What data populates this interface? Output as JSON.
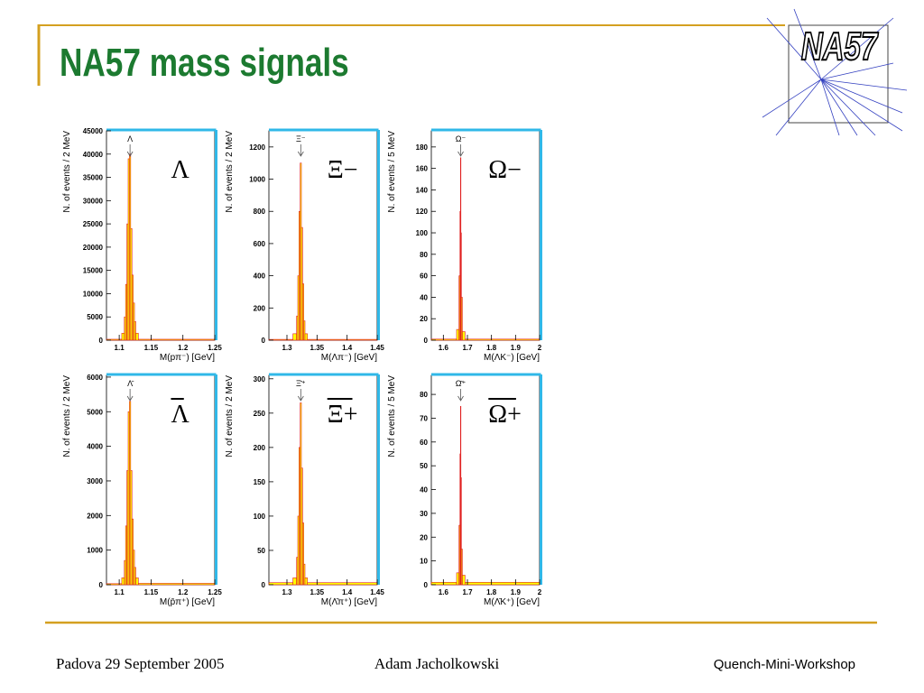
{
  "header": {
    "title": "NA57 mass signals",
    "logo": "NA57"
  },
  "footer": {
    "left": "Padova 29 September 2005",
    "center": "Adam Jacholkowski",
    "right": "Quench-Mini-Workshop"
  },
  "chart_data": [
    {
      "type": "histogram",
      "label": "Λ",
      "overline": false,
      "peak_label": "Λ",
      "xlabel": "M(pπ⁻)  [GeV]",
      "ylabel": "N. of events / 2 MeV",
      "bins": [
        1.08,
        1.104,
        1.108,
        1.11,
        1.112,
        1.114,
        1.116,
        1.118,
        1.12,
        1.122,
        1.124,
        1.126,
        1.13,
        1.25
      ],
      "counts": [
        200,
        1500,
        5000,
        12000,
        25000,
        39000,
        40000,
        24000,
        14000,
        8000,
        4000,
        1500,
        200
      ],
      "xlim": [
        1.08,
        1.25
      ],
      "ylim": [
        0,
        45000
      ],
      "xticks": [
        1.1,
        1.15,
        1.2,
        1.25
      ],
      "yticks": [
        0,
        5000,
        10000,
        15000,
        20000,
        25000,
        30000,
        35000,
        40000,
        45000
      ],
      "color": "#ffff00",
      "edge_color": "#e02020"
    },
    {
      "type": "histogram",
      "label": "Ξ−",
      "overline": false,
      "peak_label": "Ξ⁻",
      "xlabel": "M(Λπ⁻)  [GeV]",
      "ylabel": "N. of events / 2 MeV",
      "bins": [
        1.27,
        1.31,
        1.316,
        1.318,
        1.32,
        1.322,
        1.324,
        1.326,
        1.328,
        1.33,
        1.334,
        1.45
      ],
      "counts": [
        5,
        40,
        150,
        400,
        800,
        1100,
        700,
        350,
        120,
        40,
        5
      ],
      "xlim": [
        1.27,
        1.45
      ],
      "ylim": [
        0,
        1300
      ],
      "xticks": [
        1.3,
        1.35,
        1.4,
        1.45
      ],
      "yticks": [
        0,
        200,
        400,
        600,
        800,
        1000,
        1200
      ],
      "color": "#ffff00",
      "edge_color": "#e02020"
    },
    {
      "type": "histogram",
      "label": "Ω−",
      "overline": false,
      "peak_label": "Ω⁻",
      "xlabel": "M(ΛK⁻)  [GeV]",
      "ylabel": "N. of events / 5 MeV",
      "bins": [
        1.55,
        1.655,
        1.665,
        1.669,
        1.671,
        1.673,
        1.675,
        1.679,
        1.69,
        2.0
      ],
      "counts": [
        1,
        10,
        60,
        120,
        170,
        100,
        40,
        8,
        1
      ],
      "xlim": [
        1.55,
        2.0
      ],
      "ylim": [
        0,
        195
      ],
      "xticks": [
        1.6,
        1.7,
        1.8,
        1.9,
        2
      ],
      "yticks": [
        0,
        20,
        40,
        60,
        80,
        100,
        120,
        140,
        160,
        180
      ],
      "color": "#ffff00",
      "edge_color": "#e02020"
    },
    {
      "type": "histogram",
      "label": "Λ",
      "overline": true,
      "peak_label": "Λ̄",
      "xlabel": "M(p̄π⁺)  [GeV]",
      "ylabel": "N. of events / 2 MeV",
      "bins": [
        1.08,
        1.104,
        1.108,
        1.11,
        1.112,
        1.114,
        1.116,
        1.118,
        1.12,
        1.122,
        1.124,
        1.126,
        1.13,
        1.25
      ],
      "counts": [
        30,
        200,
        700,
        1700,
        3300,
        5000,
        5300,
        3300,
        1900,
        1000,
        500,
        200,
        40
      ],
      "xlim": [
        1.08,
        1.25
      ],
      "ylim": [
        0,
        6050
      ],
      "xticks": [
        1.1,
        1.15,
        1.2,
        1.25
      ],
      "yticks": [
        0,
        1000,
        2000,
        3000,
        4000,
        5000,
        6000
      ],
      "color": "#ffff00",
      "edge_color": "#e02020"
    },
    {
      "type": "histogram",
      "label": "Ξ+",
      "overline": true,
      "peak_label": "Ξ̄⁺",
      "xlabel": "M(Λ̄π⁺)  [GeV]",
      "ylabel": "N. of events / 2 MeV",
      "bins": [
        1.27,
        1.31,
        1.316,
        1.318,
        1.32,
        1.322,
        1.324,
        1.326,
        1.328,
        1.33,
        1.334,
        1.45
      ],
      "counts": [
        3,
        10,
        40,
        100,
        200,
        265,
        170,
        90,
        30,
        10,
        3
      ],
      "xlim": [
        1.27,
        1.45
      ],
      "ylim": [
        0,
        305
      ],
      "xticks": [
        1.3,
        1.35,
        1.4,
        1.45
      ],
      "yticks": [
        0,
        50,
        100,
        150,
        200,
        250,
        300
      ],
      "color": "#ffff00",
      "edge_color": "#e02020"
    },
    {
      "type": "histogram",
      "label": "Ω+",
      "overline": true,
      "peak_label": "Ω̄⁺",
      "xlabel": "M(Λ̄K⁺)  [GeV]",
      "ylabel": "N. of events / 5 MeV",
      "bins": [
        1.55,
        1.655,
        1.665,
        1.669,
        1.671,
        1.673,
        1.675,
        1.679,
        1.69,
        2.0
      ],
      "counts": [
        1,
        5,
        25,
        55,
        75,
        45,
        15,
        4,
        1
      ],
      "xlim": [
        1.55,
        2.0
      ],
      "ylim": [
        0,
        88
      ],
      "xticks": [
        1.6,
        1.7,
        1.8,
        1.9,
        2
      ],
      "yticks": [
        0,
        10,
        20,
        30,
        40,
        50,
        60,
        70,
        80
      ],
      "color": "#ffff00",
      "edge_color": "#e02020"
    }
  ]
}
